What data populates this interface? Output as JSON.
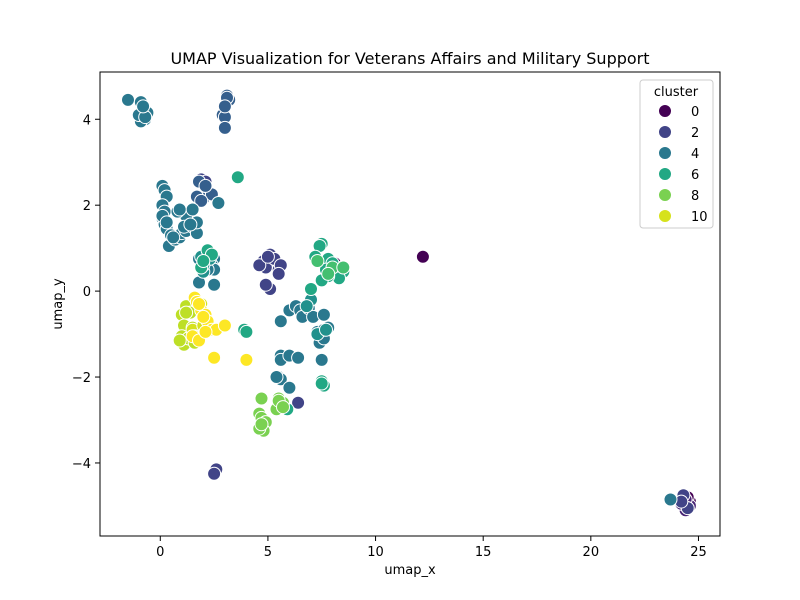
{
  "chart_data": {
    "type": "scatter",
    "title": "UMAP Visualization for Veterans Affairs and Military Support",
    "xlabel": "umap_x",
    "ylabel": "umap_y",
    "xlim": [
      -2.8,
      26.0
    ],
    "ylim": [
      -5.7,
      5.1
    ],
    "xticks": [
      "0",
      "5",
      "10",
      "15",
      "20",
      "25"
    ],
    "xtick_values": [
      0,
      5,
      10,
      15,
      20,
      25
    ],
    "yticks": [
      "−4",
      "−2",
      "0",
      "2",
      "4"
    ],
    "ytick_values": [
      -4,
      -2,
      0,
      2,
      4
    ],
    "grid": false,
    "legend": {
      "title": "cluster",
      "placement": "top-right",
      "entries": [
        {
          "label": "0",
          "cluster": 0
        },
        {
          "label": "2",
          "cluster": 2
        },
        {
          "label": "4",
          "cluster": 4
        },
        {
          "label": "6",
          "cluster": 6
        },
        {
          "label": "8",
          "cluster": 8
        },
        {
          "label": "10",
          "cluster": 10
        }
      ]
    },
    "palette": {
      "0": "#440154",
      "1": "#482475",
      "2": "#414487",
      "3": "#355f8d",
      "4": "#2a788e",
      "5": "#21918c",
      "6": "#22a884",
      "7": "#44bf70",
      "8": "#7ad151",
      "9": "#bddf26",
      "10": "#d6e21c",
      "11": "#fde725"
    },
    "series": [
      {
        "cluster": 0,
        "points": [
          [
            12.2,
            0.8
          ],
          [
            8.1,
            0.65
          ],
          [
            8.2,
            0.55
          ],
          [
            24.6,
            -4.9
          ],
          [
            24.3,
            -5.0
          ],
          [
            24.5,
            -4.8
          ]
        ]
      },
      {
        "cluster": 1,
        "points": [
          [
            24.4,
            -5.1
          ],
          [
            24.2,
            -4.95
          ],
          [
            24.6,
            -5.0
          ],
          [
            24.4,
            -4.85
          ],
          [
            24.5,
            -5.05
          ]
        ]
      },
      {
        "cluster": 2,
        "points": [
          [
            5.1,
            0.85
          ],
          [
            4.8,
            0.7
          ],
          [
            5.5,
            0.5
          ],
          [
            4.9,
            0.55
          ],
          [
            5.3,
            0.75
          ],
          [
            5.6,
            0.6
          ],
          [
            4.6,
            0.6
          ],
          [
            5.0,
            0.8
          ],
          [
            5.5,
            0.4
          ],
          [
            5.1,
            0.05
          ],
          [
            4.9,
            0.15
          ],
          [
            6.4,
            -2.6
          ],
          [
            2.6,
            -4.15
          ],
          [
            2.5,
            -4.25
          ],
          [
            24.3,
            -4.75
          ],
          [
            24.5,
            -5.05
          ],
          [
            24.2,
            -4.9
          ],
          [
            2.0,
            2.5
          ],
          [
            1.9,
            2.6
          ],
          [
            2.1,
            2.55
          ]
        ]
      },
      {
        "cluster": 3,
        "points": [
          [
            3.1,
            4.55
          ],
          [
            3.2,
            4.45
          ],
          [
            2.9,
            4.1
          ],
          [
            3.0,
            4.05
          ],
          [
            3.1,
            4.5
          ],
          [
            3.0,
            4.3
          ],
          [
            3.0,
            3.8
          ],
          [
            1.8,
            2.55
          ],
          [
            2.2,
            2.3
          ],
          [
            2.0,
            2.15
          ],
          [
            1.7,
            2.2
          ],
          [
            2.4,
            2.25
          ],
          [
            2.1,
            2.45
          ],
          [
            1.9,
            2.1
          ]
        ]
      },
      {
        "cluster": 4,
        "points": [
          [
            -1.5,
            4.45
          ],
          [
            -0.9,
            4.4
          ],
          [
            -0.8,
            4.2
          ],
          [
            -0.7,
            4.0
          ],
          [
            -0.9,
            3.95
          ],
          [
            -0.6,
            4.15
          ],
          [
            -1.0,
            4.1
          ],
          [
            -0.7,
            4.05
          ],
          [
            -0.8,
            4.3
          ],
          [
            0.1,
            2.45
          ],
          [
            0.2,
            2.35
          ],
          [
            0.3,
            2.2
          ],
          [
            0.1,
            2.0
          ],
          [
            0.2,
            1.85
          ],
          [
            0.1,
            1.7
          ],
          [
            0.2,
            1.55
          ],
          [
            0.3,
            1.45
          ],
          [
            0.5,
            1.3
          ],
          [
            0.6,
            1.2
          ],
          [
            0.4,
            1.05
          ],
          [
            0.7,
            1.2
          ],
          [
            0.9,
            1.25
          ],
          [
            1.0,
            1.35
          ],
          [
            1.2,
            1.4
          ],
          [
            1.5,
            1.5
          ],
          [
            1.7,
            1.35
          ],
          [
            1.3,
            1.8
          ],
          [
            1.2,
            1.75
          ],
          [
            1.5,
            1.9
          ],
          [
            1.7,
            1.6
          ],
          [
            1.1,
            1.5
          ],
          [
            0.8,
            1.85
          ],
          [
            0.9,
            1.9
          ],
          [
            1.4,
            1.55
          ],
          [
            2.7,
            2.05
          ],
          [
            2.2,
            0.9
          ],
          [
            2.5,
            0.75
          ],
          [
            2.4,
            0.6
          ],
          [
            2.5,
            0.5
          ],
          [
            2.2,
            0.5
          ],
          [
            1.8,
            0.75
          ],
          [
            2.5,
            0.15
          ],
          [
            1.8,
            0.2
          ],
          [
            5.6,
            -0.7
          ],
          [
            6.0,
            -0.45
          ],
          [
            6.3,
            -0.35
          ],
          [
            6.5,
            -0.45
          ],
          [
            6.6,
            -0.6
          ],
          [
            6.9,
            -0.4
          ],
          [
            7.1,
            -0.6
          ],
          [
            7.3,
            -0.95
          ],
          [
            7.4,
            -1.2
          ],
          [
            7.6,
            -1.1
          ],
          [
            7.6,
            -0.55
          ],
          [
            7.8,
            -0.85
          ],
          [
            7.6,
            -0.9
          ],
          [
            7.5,
            -1.6
          ],
          [
            5.6,
            -1.5
          ],
          [
            5.6,
            -1.6
          ],
          [
            6.0,
            -1.5
          ],
          [
            6.4,
            -1.55
          ],
          [
            5.5,
            -2.0
          ],
          [
            5.6,
            -2.05
          ],
          [
            5.4,
            -2.0
          ],
          [
            6.0,
            -2.25
          ],
          [
            23.7,
            -4.85
          ],
          [
            0.1,
            1.75
          ],
          [
            0.3,
            1.6
          ],
          [
            0.6,
            1.25
          ]
        ]
      },
      {
        "cluster": 5,
        "points": [
          [
            2.0,
            0.45
          ],
          [
            1.9,
            0.8
          ],
          [
            2.3,
            0.75
          ],
          [
            2.0,
            0.6
          ],
          [
            7.0,
            -0.2
          ],
          [
            6.8,
            -0.35
          ],
          [
            7.3,
            -1.0
          ],
          [
            7.7,
            -0.9
          ]
        ]
      },
      {
        "cluster": 6,
        "points": [
          [
            3.6,
            2.65
          ],
          [
            2.2,
            0.95
          ],
          [
            2.4,
            0.85
          ],
          [
            7.5,
            1.1
          ],
          [
            7.4,
            1.05
          ],
          [
            7.2,
            0.8
          ],
          [
            7.7,
            0.6
          ],
          [
            7.8,
            0.75
          ],
          [
            8.0,
            0.65
          ],
          [
            8.2,
            0.45
          ],
          [
            8.5,
            0.45
          ],
          [
            8.3,
            0.3
          ],
          [
            7.8,
            0.35
          ],
          [
            7.5,
            0.25
          ],
          [
            7.0,
            0.05
          ],
          [
            7.7,
            0.5
          ],
          [
            7.5,
            -2.1
          ],
          [
            7.6,
            -2.2
          ],
          [
            7.5,
            -2.15
          ],
          [
            5.9,
            -2.75
          ],
          [
            3.9,
            -0.9
          ],
          [
            4.0,
            -0.95
          ],
          [
            1.9,
            0.55
          ],
          [
            2.0,
            0.7
          ]
        ]
      },
      {
        "cluster": 7,
        "points": [
          [
            7.3,
            0.7
          ],
          [
            8.0,
            0.55
          ],
          [
            7.8,
            0.4
          ],
          [
            8.5,
            0.55
          ]
        ]
      },
      {
        "cluster": 8,
        "points": [
          [
            4.7,
            -2.5
          ],
          [
            4.6,
            -2.85
          ],
          [
            4.7,
            -2.95
          ],
          [
            4.9,
            -3.05
          ],
          [
            4.8,
            -3.25
          ],
          [
            4.6,
            -3.2
          ],
          [
            4.7,
            -3.1
          ],
          [
            5.5,
            -2.5
          ],
          [
            5.6,
            -2.65
          ],
          [
            5.4,
            -2.75
          ],
          [
            5.7,
            -2.6
          ],
          [
            5.5,
            -2.55
          ],
          [
            5.7,
            -2.7
          ]
        ]
      },
      {
        "cluster": 9,
        "points": [
          [
            1.0,
            -0.55
          ],
          [
            1.2,
            -0.35
          ],
          [
            1.4,
            -0.5
          ],
          [
            1.1,
            -0.8
          ],
          [
            1.0,
            -1.05
          ],
          [
            1.1,
            -1.25
          ],
          [
            1.3,
            -1.1
          ],
          [
            1.6,
            -1.2
          ],
          [
            1.7,
            -0.9
          ],
          [
            1.2,
            -0.5
          ],
          [
            0.9,
            -1.15
          ],
          [
            1.5,
            -0.85
          ]
        ]
      },
      {
        "cluster": 10,
        "points": [
          [
            1.5,
            -0.9
          ],
          [
            1.6,
            -1.05
          ],
          [
            1.8,
            -1.1
          ],
          [
            2.0,
            -0.8
          ],
          [
            2.3,
            -0.85
          ],
          [
            1.9,
            -0.3
          ]
        ]
      },
      {
        "cluster": 11,
        "points": [
          [
            1.6,
            -0.15
          ],
          [
            1.7,
            -0.25
          ],
          [
            1.9,
            -0.45
          ],
          [
            2.1,
            -0.55
          ],
          [
            2.2,
            -0.7
          ],
          [
            2.0,
            -0.6
          ],
          [
            1.8,
            -0.3
          ],
          [
            1.5,
            -1.05
          ],
          [
            1.8,
            -1.15
          ],
          [
            2.4,
            -0.9
          ],
          [
            2.6,
            -0.9
          ],
          [
            3.0,
            -0.8
          ],
          [
            2.5,
            -1.55
          ],
          [
            4.0,
            -1.6
          ],
          [
            2.1,
            -0.95
          ]
        ]
      }
    ]
  }
}
